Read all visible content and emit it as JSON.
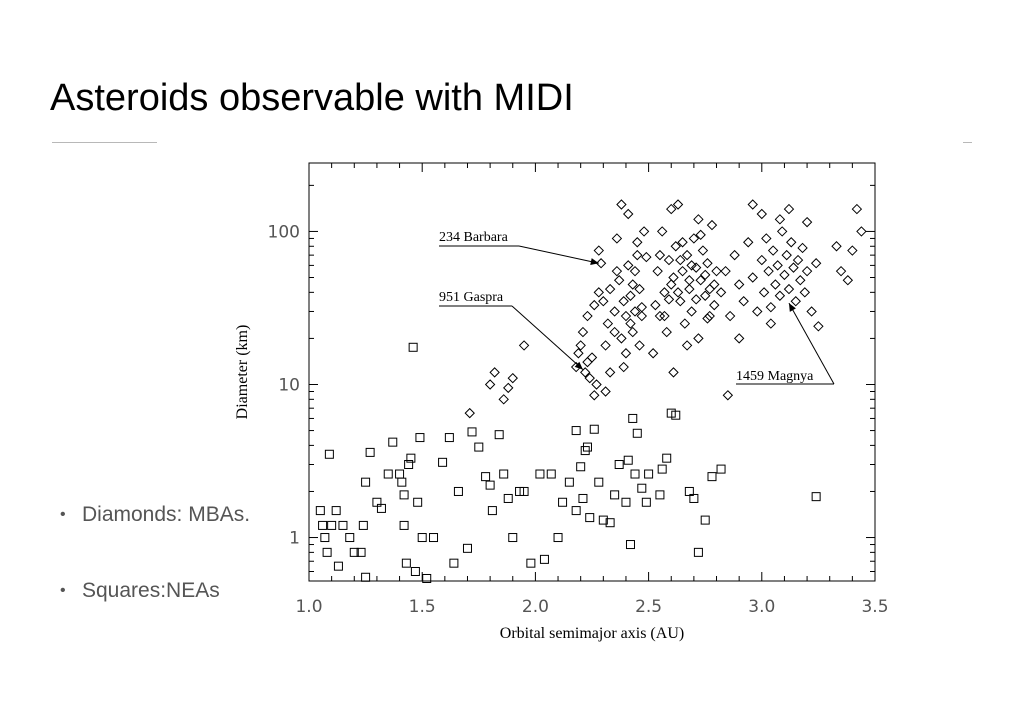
{
  "slide": {
    "title": "Asteroids observable with MIDI",
    "bullets": [
      "Diamonds: MBAs.",
      "Squares:NEAs"
    ]
  },
  "chart_data": {
    "type": "scatter",
    "title": "",
    "xlabel": "Orbital semimajor axis (AU)",
    "ylabel": "Diameter (km)",
    "xlim": [
      1.0,
      3.5
    ],
    "ylim": [
      0.52,
      280
    ],
    "yscale": "log",
    "xticks": [
      "1.0",
      "1.5",
      "2.0",
      "2.5",
      "3.0",
      "3.5"
    ],
    "yticks": [
      "1",
      "10",
      "100"
    ],
    "grid": false,
    "legend": "none",
    "series": [
      {
        "marker": "diamond",
        "points": [
          [
            1.71,
            6.5
          ],
          [
            1.8,
            10
          ],
          [
            1.82,
            12
          ],
          [
            1.86,
            8
          ],
          [
            1.88,
            9.5
          ],
          [
            1.9,
            11
          ],
          [
            1.95,
            18
          ],
          [
            2.18,
            13
          ],
          [
            2.19,
            16
          ],
          [
            2.2,
            18
          ],
          [
            2.21,
            22
          ],
          [
            2.22,
            12
          ],
          [
            2.23,
            14
          ],
          [
            2.24,
            11
          ],
          [
            2.25,
            15
          ],
          [
            2.23,
            28
          ],
          [
            2.26,
            33
          ],
          [
            2.27,
            10
          ],
          [
            2.28,
            40
          ],
          [
            2.3,
            35
          ],
          [
            2.31,
            18
          ],
          [
            2.32,
            25
          ],
          [
            2.33,
            42
          ],
          [
            2.35,
            30
          ],
          [
            2.36,
            55
          ],
          [
            2.37,
            48
          ],
          [
            2.38,
            20
          ],
          [
            2.39,
            35
          ],
          [
            2.4,
            16
          ],
          [
            2.41,
            60
          ],
          [
            2.42,
            25
          ],
          [
            2.43,
            45
          ],
          [
            2.44,
            30
          ],
          [
            2.45,
            70
          ],
          [
            2.46,
            18
          ],
          [
            2.47,
            28
          ],
          [
            2.48,
            100
          ],
          [
            2.26,
            8.5
          ],
          [
            2.28,
            75
          ],
          [
            2.29,
            62
          ],
          [
            2.31,
            9
          ],
          [
            2.33,
            12
          ],
          [
            2.35,
            22
          ],
          [
            2.36,
            90
          ],
          [
            2.38,
            150
          ],
          [
            2.39,
            13
          ],
          [
            2.4,
            28
          ],
          [
            2.41,
            130
          ],
          [
            2.42,
            38
          ],
          [
            2.43,
            22
          ],
          [
            2.44,
            55
          ],
          [
            2.45,
            85
          ],
          [
            2.46,
            42
          ],
          [
            2.47,
            32
          ],
          [
            2.49,
            68
          ],
          [
            2.52,
            16
          ],
          [
            2.53,
            33
          ],
          [
            2.54,
            55
          ],
          [
            2.55,
            28
          ],
          [
            2.56,
            100
          ],
          [
            2.57,
            40
          ],
          [
            2.58,
            22
          ],
          [
            2.59,
            65
          ],
          [
            2.6,
            45
          ],
          [
            2.61,
            12
          ],
          [
            2.62,
            80
          ],
          [
            2.63,
            150
          ],
          [
            2.64,
            35
          ],
          [
            2.65,
            55
          ],
          [
            2.66,
            25
          ],
          [
            2.67,
            70
          ],
          [
            2.68,
            42
          ],
          [
            2.69,
            30
          ],
          [
            2.7,
            90
          ],
          [
            2.71,
            58
          ],
          [
            2.72,
            20
          ],
          [
            2.73,
            48
          ],
          [
            2.74,
            75
          ],
          [
            2.75,
            38
          ],
          [
            2.76,
            62
          ],
          [
            2.77,
            28
          ],
          [
            2.78,
            110
          ],
          [
            2.79,
            45
          ],
          [
            2.8,
            55
          ],
          [
            2.55,
            70
          ],
          [
            2.57,
            28
          ],
          [
            2.59,
            36
          ],
          [
            2.61,
            50
          ],
          [
            2.63,
            40
          ],
          [
            2.65,
            85
          ],
          [
            2.67,
            18
          ],
          [
            2.69,
            60
          ],
          [
            2.71,
            36
          ],
          [
            2.73,
            95
          ],
          [
            2.75,
            52
          ],
          [
            2.77,
            42
          ],
          [
            2.79,
            33
          ],
          [
            2.6,
            140
          ],
          [
            2.64,
            65
          ],
          [
            2.68,
            48
          ],
          [
            2.72,
            120
          ],
          [
            2.76,
            27
          ],
          [
            2.82,
            40
          ],
          [
            2.84,
            55
          ],
          [
            2.86,
            28
          ],
          [
            2.88,
            70
          ],
          [
            2.9,
            45
          ],
          [
            2.92,
            35
          ],
          [
            2.94,
            85
          ],
          [
            2.96,
            50
          ],
          [
            2.98,
            30
          ],
          [
            3.0,
            65
          ],
          [
            3.01,
            40
          ],
          [
            3.02,
            90
          ],
          [
            3.03,
            55
          ],
          [
            3.04,
            32
          ],
          [
            3.05,
            75
          ],
          [
            3.06,
            45
          ],
          [
            3.07,
            60
          ],
          [
            3.08,
            38
          ],
          [
            3.09,
            100
          ],
          [
            3.1,
            52
          ],
          [
            3.11,
            70
          ],
          [
            3.12,
            42
          ],
          [
            3.13,
            85
          ],
          [
            3.14,
            58
          ],
          [
            3.15,
            35
          ],
          [
            3.16,
            65
          ],
          [
            3.17,
            48
          ],
          [
            3.18,
            78
          ],
          [
            3.19,
            40
          ],
          [
            3.2,
            55
          ],
          [
            3.22,
            30
          ],
          [
            3.24,
            62
          ],
          [
            2.85,
            8.5
          ],
          [
            2.9,
            20
          ],
          [
            2.96,
            150
          ],
          [
            3.0,
            130
          ],
          [
            3.04,
            25
          ],
          [
            3.08,
            120
          ],
          [
            3.12,
            140
          ],
          [
            3.2,
            115
          ],
          [
            3.25,
            24
          ],
          [
            3.33,
            80
          ],
          [
            3.35,
            55
          ],
          [
            3.38,
            48
          ],
          [
            3.4,
            75
          ],
          [
            3.42,
            140
          ],
          [
            3.44,
            100
          ]
        ]
      },
      {
        "marker": "square",
        "points": [
          [
            1.05,
            1.5
          ],
          [
            1.06,
            1.2
          ],
          [
            1.07,
            1.0
          ],
          [
            1.08,
            0.8
          ],
          [
            1.09,
            3.5
          ],
          [
            1.1,
            1.2
          ],
          [
            1.12,
            1.5
          ],
          [
            1.13,
            0.65
          ],
          [
            1.15,
            1.2
          ],
          [
            1.18,
            1.0
          ],
          [
            1.2,
            0.8
          ],
          [
            1.23,
            0.8
          ],
          [
            1.24,
            1.2
          ],
          [
            1.25,
            0.55
          ],
          [
            1.25,
            2.3
          ],
          [
            1.27,
            3.6
          ],
          [
            1.3,
            1.7
          ],
          [
            1.32,
            1.55
          ],
          [
            1.35,
            2.6
          ],
          [
            1.37,
            4.2
          ],
          [
            1.4,
            2.6
          ],
          [
            1.41,
            2.3
          ],
          [
            1.42,
            1.9
          ],
          [
            1.42,
            1.2
          ],
          [
            1.43,
            0.68
          ],
          [
            1.44,
            3.0
          ],
          [
            1.45,
            3.3
          ],
          [
            1.46,
            17.5
          ],
          [
            1.47,
            0.6
          ],
          [
            1.48,
            1.7
          ],
          [
            1.49,
            4.5
          ],
          [
            1.5,
            1.0
          ],
          [
            1.52,
            0.54
          ],
          [
            1.55,
            1.0
          ],
          [
            1.59,
            3.1
          ],
          [
            1.62,
            4.5
          ],
          [
            1.64,
            0.68
          ],
          [
            1.66,
            2.0
          ],
          [
            1.7,
            0.85
          ],
          [
            1.72,
            4.9
          ],
          [
            1.75,
            3.9
          ],
          [
            1.78,
            2.5
          ],
          [
            1.8,
            2.2
          ],
          [
            1.81,
            1.5
          ],
          [
            1.84,
            4.7
          ],
          [
            1.86,
            2.6
          ],
          [
            1.88,
            1.8
          ],
          [
            1.9,
            1.0
          ],
          [
            1.93,
            2.0
          ],
          [
            1.95,
            2.0
          ],
          [
            1.98,
            0.68
          ],
          [
            2.02,
            2.6
          ],
          [
            2.04,
            0.72
          ],
          [
            2.07,
            2.6
          ],
          [
            2.1,
            1.0
          ],
          [
            2.12,
            1.7
          ],
          [
            2.15,
            2.3
          ],
          [
            2.18,
            1.5
          ],
          [
            2.18,
            5.0
          ],
          [
            2.2,
            2.9
          ],
          [
            2.21,
            1.8
          ],
          [
            2.22,
            3.7
          ],
          [
            2.23,
            3.9
          ],
          [
            2.24,
            1.35
          ],
          [
            2.26,
            5.1
          ],
          [
            2.28,
            2.3
          ],
          [
            2.3,
            1.3
          ],
          [
            2.33,
            1.25
          ],
          [
            2.35,
            1.9
          ],
          [
            2.37,
            3.0
          ],
          [
            2.4,
            1.7
          ],
          [
            2.41,
            3.2
          ],
          [
            2.42,
            0.9
          ],
          [
            2.43,
            6.0
          ],
          [
            2.44,
            2.6
          ],
          [
            2.45,
            4.8
          ],
          [
            2.47,
            2.1
          ],
          [
            2.49,
            1.7
          ],
          [
            2.5,
            2.6
          ],
          [
            2.55,
            1.9
          ],
          [
            2.56,
            2.8
          ],
          [
            2.58,
            3.3
          ],
          [
            2.6,
            6.5
          ],
          [
            2.62,
            6.3
          ],
          [
            2.68,
            2.0
          ],
          [
            2.7,
            1.8
          ],
          [
            2.72,
            0.8
          ],
          [
            2.75,
            1.3
          ],
          [
            2.78,
            2.5
          ],
          [
            2.82,
            2.8
          ],
          [
            3.24,
            1.85
          ]
        ]
      }
    ],
    "annotations": [
      {
        "text": "234 Barbara",
        "target": [
          2.28,
          62
        ]
      },
      {
        "text": "951 Gaspra",
        "target": [
          2.21,
          12.5
        ]
      },
      {
        "text": "1459 Magnya",
        "target": [
          3.12,
          34
        ]
      }
    ]
  }
}
